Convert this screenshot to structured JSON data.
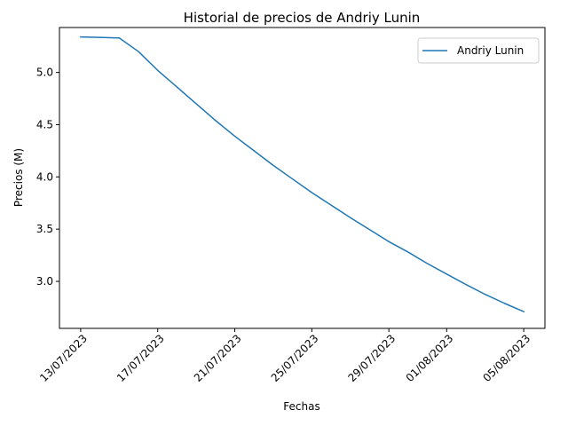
{
  "chart_data": {
    "type": "line",
    "title": "Historial de precios de Andriy Lunin",
    "xlabel": "Fechas",
    "ylabel": "Precios (M)",
    "x_ticks": [
      "13/07/2023",
      "17/07/2023",
      "21/07/2023",
      "25/07/2023",
      "29/07/2023",
      "01/08/2023",
      "05/08/2023"
    ],
    "x_tick_days": [
      0,
      4,
      8,
      12,
      16,
      19,
      23
    ],
    "x_range_days": [
      -1.1,
      24.1
    ],
    "ylim": [
      2.55,
      5.43
    ],
    "y_ticks": [
      3.0,
      3.5,
      4.0,
      4.5,
      5.0
    ],
    "y_tick_labels": [
      "3.0",
      "3.5",
      "4.0",
      "4.5",
      "5.0"
    ],
    "legend_position": "top-right",
    "series": [
      {
        "name": "Andriy Lunin",
        "color": "#1f77b4",
        "x_days": [
          0,
          1,
          2,
          3,
          4,
          5,
          6,
          7,
          8,
          9,
          10,
          11,
          12,
          13,
          14,
          15,
          16,
          17,
          18,
          19,
          20,
          21,
          22,
          23
        ],
        "values": [
          5.34,
          5.335,
          5.33,
          5.2,
          5.02,
          4.86,
          4.7,
          4.54,
          4.39,
          4.25,
          4.11,
          3.98,
          3.85,
          3.73,
          3.61,
          3.495,
          3.38,
          3.28,
          3.17,
          3.07,
          2.97,
          2.875,
          2.79,
          2.71
        ]
      }
    ]
  }
}
